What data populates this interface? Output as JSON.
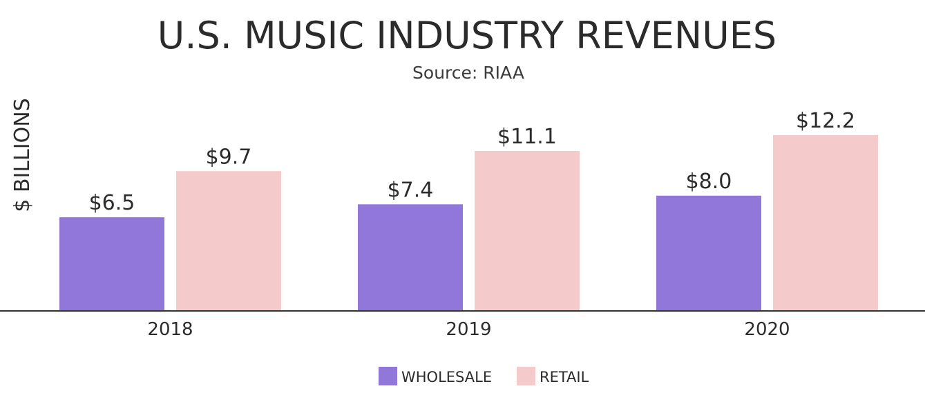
{
  "chart_data": {
    "type": "bar",
    "title": "U.S. MUSIC INDUSTRY REVENUES",
    "subtitle": "Source: RIAA",
    "ylabel": "$ BILLIONS",
    "xlabel": "",
    "categories": [
      "2018",
      "2019",
      "2020"
    ],
    "series": [
      {
        "name": "WHOLESALE",
        "color": "#9177d9",
        "values": [
          6.5,
          7.4,
          8.0
        ],
        "labels": [
          "$6.5",
          "$7.4",
          "$8.0"
        ]
      },
      {
        "name": "RETAIL",
        "color": "#f4caca",
        "values": [
          9.7,
          11.1,
          12.2
        ],
        "labels": [
          "$9.7",
          "$11.1",
          "$12.2"
        ]
      }
    ],
    "ylim": [
      0,
      12.2
    ],
    "grid": false,
    "legend_position": "bottom-center",
    "axis_color": "#333333",
    "text_color": "#2b2b2b"
  }
}
